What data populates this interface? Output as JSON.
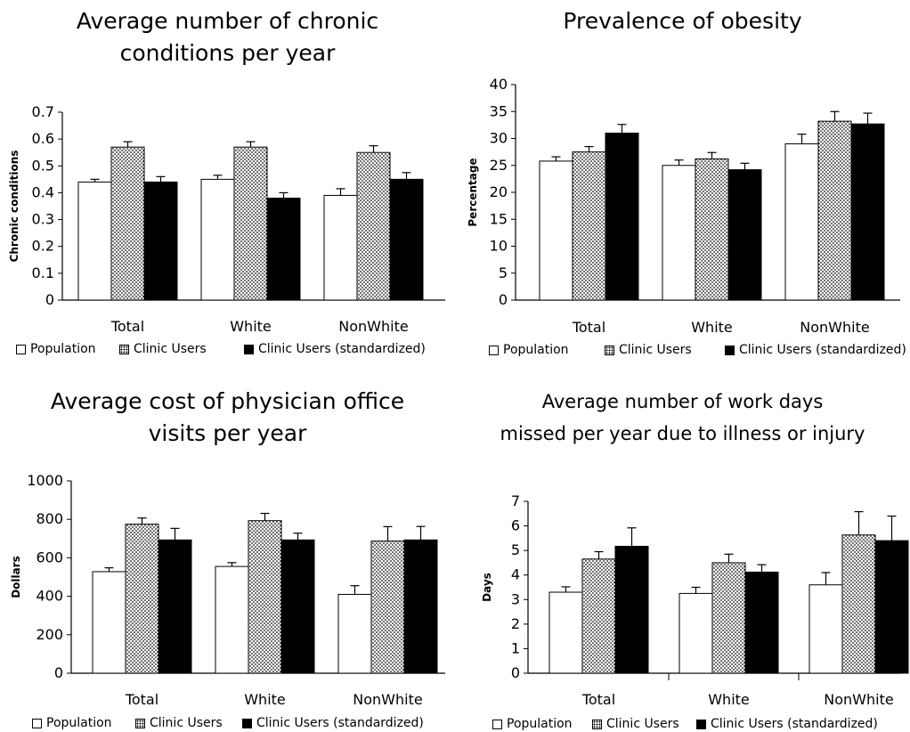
{
  "legend": {
    "population": "Population",
    "clinic_users": "Clinic Users",
    "clinic_users_std": "Clinic Users (standardized)"
  },
  "colors": {
    "population": "#ffffff",
    "clinic_users": "#dotted",
    "clinic_users_std": "#000000"
  },
  "chart_data": [
    {
      "type": "bar",
      "title_lines": [
        "Average number of chronic",
        "conditions per year"
      ],
      "ylabel": "Chronic conditions",
      "categories": [
        "Total",
        "White",
        "NonWhite"
      ],
      "ylim": [
        0,
        0.7
      ],
      "yticks": [
        "0",
        "0.1",
        "0.2",
        "0.3",
        "0.4",
        "0.5",
        "0.6",
        "0.7"
      ],
      "series": [
        {
          "name": "Population",
          "values": [
            0.44,
            0.45,
            0.39
          ],
          "errors": [
            0.01,
            0.015,
            0.025
          ]
        },
        {
          "name": "Clinic Users",
          "values": [
            0.57,
            0.57,
            0.55
          ],
          "errors": [
            0.02,
            0.02,
            0.025
          ]
        },
        {
          "name": "Clinic Users (standardized)",
          "values": [
            0.44,
            0.38,
            0.45
          ],
          "errors": [
            0.02,
            0.02,
            0.025
          ]
        }
      ]
    },
    {
      "type": "bar",
      "title_lines": [
        "Prevalence of obesity"
      ],
      "ylabel": "Percentage",
      "categories": [
        "Total",
        "White",
        "NonWhite"
      ],
      "ylim": [
        0,
        40
      ],
      "yticks": [
        "0",
        "5",
        "10",
        "15",
        "20",
        "25",
        "30",
        "35",
        "40"
      ],
      "series": [
        {
          "name": "Population",
          "values": [
            25.8,
            25.0,
            29.0
          ],
          "errors": [
            0.8,
            1.0,
            1.8
          ]
        },
        {
          "name": "Clinic Users",
          "values": [
            27.5,
            26.2,
            33.2
          ],
          "errors": [
            1.0,
            1.2,
            1.8
          ]
        },
        {
          "name": "Clinic Users (standardized)",
          "values": [
            31.0,
            24.2,
            32.7
          ],
          "errors": [
            1.6,
            1.2,
            2.0
          ]
        }
      ]
    },
    {
      "type": "bar",
      "title_lines": [
        "Average cost of physician office",
        "visits per year"
      ],
      "ylabel": "Dollars",
      "categories": [
        "Total",
        "White",
        "NonWhite"
      ],
      "ylim": [
        0,
        1000
      ],
      "yticks": [
        "0",
        "200",
        "400",
        "600",
        "800",
        "1000"
      ],
      "series": [
        {
          "name": "Population",
          "values": [
            528,
            555,
            410
          ],
          "errors": [
            20,
            20,
            45
          ]
        },
        {
          "name": "Clinic Users",
          "values": [
            775,
            793,
            687
          ],
          "errors": [
            32,
            38,
            75
          ]
        },
        {
          "name": "Clinic Users (standardized)",
          "values": [
            693,
            693,
            693
          ],
          "errors": [
            60,
            35,
            70
          ]
        }
      ]
    },
    {
      "type": "bar",
      "title_lines": [
        "Average number of work days",
        "missed per year due to illness or injury"
      ],
      "ylabel": "Days",
      "categories": [
        "Total",
        "White",
        "NonWhite"
      ],
      "ylim": [
        0,
        7
      ],
      "yticks": [
        "0",
        "1",
        "2",
        "3",
        "4",
        "5",
        "6",
        "7"
      ],
      "series": [
        {
          "name": "Population",
          "values": [
            3.3,
            3.25,
            3.6
          ],
          "errors": [
            0.22,
            0.25,
            0.5
          ]
        },
        {
          "name": "Clinic Users",
          "values": [
            4.65,
            4.5,
            5.63
          ],
          "errors": [
            0.3,
            0.35,
            0.95
          ]
        },
        {
          "name": "Clinic Users (standardized)",
          "values": [
            5.17,
            4.12,
            5.4
          ],
          "errors": [
            0.75,
            0.3,
            1.0
          ]
        }
      ]
    }
  ]
}
